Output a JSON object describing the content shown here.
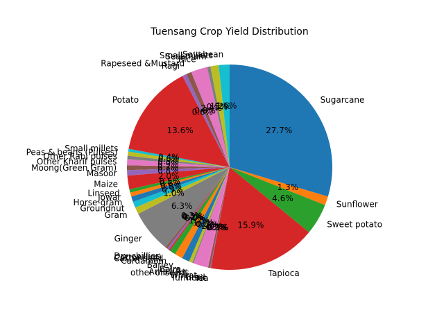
{
  "chart_data": {
    "type": "pie",
    "title": "Tuensang Crop Yield Distribution",
    "start_angle_deg": 90,
    "direction": "clockwise",
    "autopct_format": "%.1f%%",
    "slices": [
      {
        "label": "Sugarcane",
        "value": 27.7,
        "color": "#1f77b4"
      },
      {
        "label": "Sunflower",
        "value": 1.3,
        "color": "#ff7f0e"
      },
      {
        "label": "Sweet potato",
        "value": 4.6,
        "color": "#2ca02c"
      },
      {
        "label": "Tapioca",
        "value": 15.9,
        "color": "#d62728"
      },
      {
        "label": "Tea",
        "value": 0.1,
        "color": "#9467bd"
      },
      {
        "label": "Turmeric",
        "value": 0.3,
        "color": "#8c564b"
      },
      {
        "label": "Urad",
        "value": 0.2,
        "color": "#e377c2"
      },
      {
        "label": "Wheat",
        "value": 2.0,
        "color": "#e377c2"
      },
      {
        "label": "other oilseeds",
        "value": 0.2,
        "color": "#7f7f7f"
      },
      {
        "label": "Arhar/Tur",
        "value": 0.5,
        "color": "#bcbd22"
      },
      {
        "label": "Bajra",
        "value": 1.1,
        "color": "#1f77b4"
      },
      {
        "label": "Barley",
        "value": 1.2,
        "color": "#ff7f0e"
      },
      {
        "label": "Cardamom",
        "value": 0.9,
        "color": "#2ca02c"
      },
      {
        "label": "Castor seed",
        "value": 0.2,
        "color": "#d62728"
      },
      {
        "label": "Cotton(lint)",
        "value": 0.3,
        "color": "#9467bd"
      },
      {
        "label": "Dry chillies",
        "value": 0.3,
        "color": "#8c564b"
      },
      {
        "label": "Ginger",
        "value": 6.3,
        "color": "#7f7f7f"
      },
      {
        "label": "Gram",
        "value": 1.0,
        "color": "#bcbd22"
      },
      {
        "label": "Groundnut",
        "value": 0.9,
        "color": "#17becf"
      },
      {
        "label": "Horse-gram",
        "value": 0.8,
        "color": "#1f77b4"
      },
      {
        "label": "Jowar",
        "value": 0.6,
        "color": "#ff7f0e"
      },
      {
        "label": "Linseed",
        "value": 0.5,
        "color": "#2ca02c"
      },
      {
        "label": "Maize",
        "value": 2.0,
        "color": "#d62728"
      },
      {
        "label": "Masoor",
        "value": 0.8,
        "color": "#9467bd"
      },
      {
        "label": "Moong(Green Gram)",
        "value": 0.7,
        "color": "#8c564b"
      },
      {
        "label": "Other Kharif pulses",
        "value": 0.9,
        "color": "#e377c2"
      },
      {
        "label": "Other Rabi pulses",
        "value": 0.5,
        "color": "#7f7f7f"
      },
      {
        "label": "Peas & beans (Pulses)",
        "value": 0.6,
        "color": "#bcbd22"
      },
      {
        "label": "Small millets",
        "value": 0.4,
        "color": "#17becf"
      },
      {
        "label": "Potato",
        "value": 13.6,
        "color": "#d62728"
      },
      {
        "label": "Ragi",
        "value": 0.6,
        "color": "#9467bd"
      },
      {
        "label": "Rapeseed &Mustard",
        "value": 0.8,
        "color": "#8c564b"
      },
      {
        "label": "Rice",
        "value": 2.4,
        "color": "#e377c2"
      },
      {
        "label": "Sesamum",
        "value": 0.5,
        "color": "#7f7f7f"
      },
      {
        "label": "Small millets",
        "value": 1.2,
        "color": "#bcbd22"
      },
      {
        "label": "Soyabean",
        "value": 1.6,
        "color": "#17becf"
      }
    ]
  }
}
